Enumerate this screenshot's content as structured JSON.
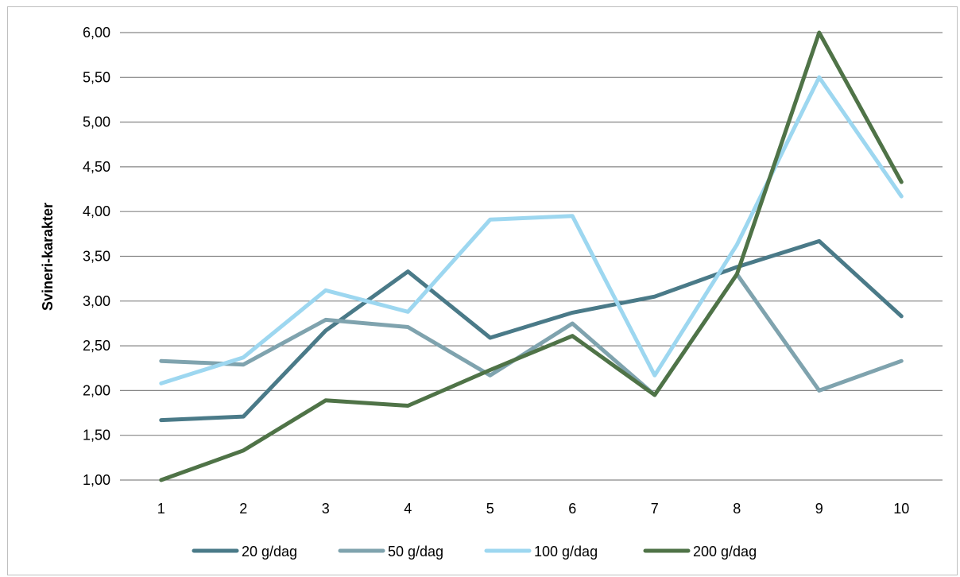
{
  "chart_data": {
    "type": "line",
    "title": "",
    "xlabel": "",
    "ylabel": "Svineri-karakter",
    "categories": [
      "1",
      "2",
      "3",
      "4",
      "5",
      "6",
      "7",
      "8",
      "9",
      "10"
    ],
    "ylim": [
      1.0,
      6.0
    ],
    "yticks": [
      "1,00",
      "1,50",
      "2,00",
      "2,50",
      "3,00",
      "3,50",
      "4,00",
      "4,50",
      "5,00",
      "5,50",
      "6,00"
    ],
    "grid": "horizontal",
    "legend_position": "bottom",
    "series": [
      {
        "name": "20 g/dag",
        "color": "#4a7a88",
        "values": [
          1.67,
          1.71,
          2.67,
          3.33,
          2.59,
          2.87,
          3.05,
          3.38,
          3.67,
          2.83
        ]
      },
      {
        "name": "50 g/dag",
        "color": "#7fa3ae",
        "values": [
          2.33,
          2.29,
          2.79,
          2.71,
          2.17,
          2.75,
          1.95,
          3.3,
          2.0,
          2.33
        ]
      },
      {
        "name": "100 g/dag",
        "color": "#9dd7f0",
        "values": [
          2.08,
          2.37,
          3.12,
          2.88,
          3.91,
          3.95,
          2.17,
          3.63,
          5.5,
          4.17
        ]
      },
      {
        "name": "200 g/dag",
        "color": "#4f7347",
        "values": [
          1.0,
          1.33,
          1.89,
          1.83,
          2.23,
          2.61,
          1.95,
          3.3,
          6.0,
          4.33
        ]
      }
    ]
  }
}
